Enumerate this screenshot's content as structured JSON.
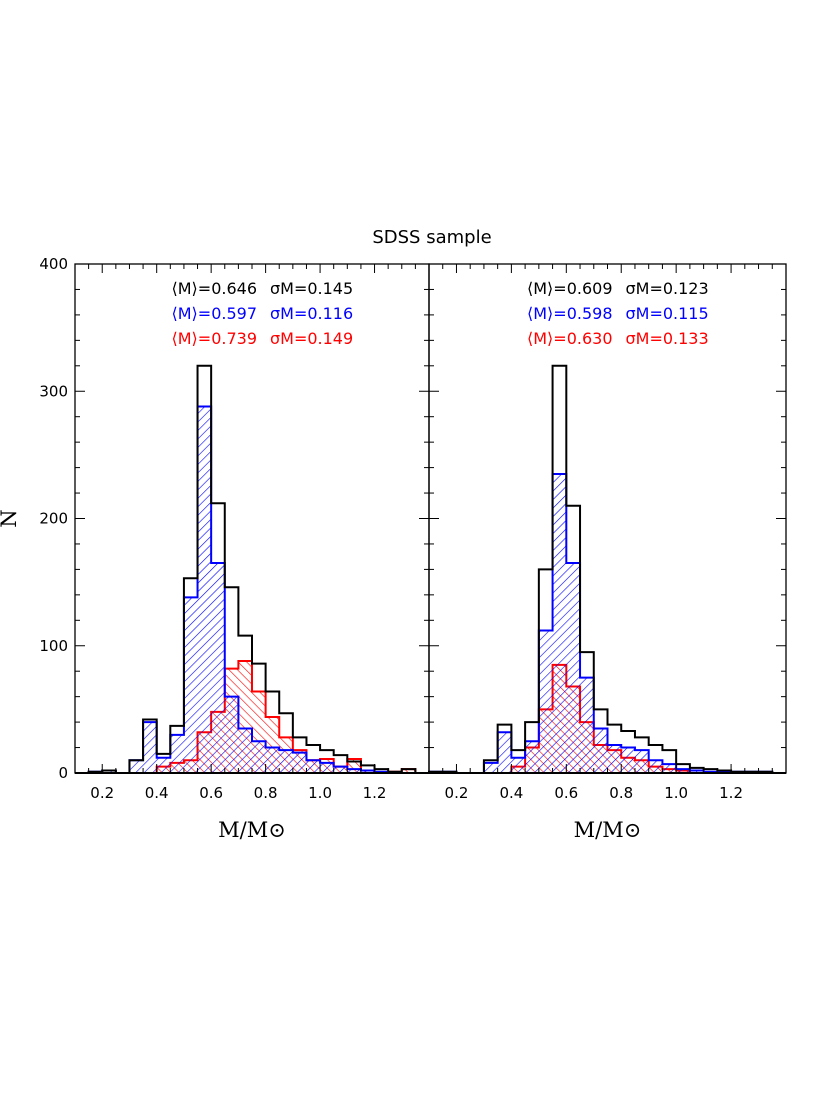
{
  "figure_title": "SDSS sample",
  "chart_data": [
    {
      "type": "histogram",
      "title": "",
      "xlabel": "M/M⊙",
      "ylabel": "N",
      "xlim": [
        0.1,
        1.4
      ],
      "ylim": [
        0,
        400
      ],
      "bin_edges": [
        0.1,
        0.15,
        0.2,
        0.25,
        0.3,
        0.35,
        0.4,
        0.45,
        0.5,
        0.55,
        0.6,
        0.65,
        0.7,
        0.75,
        0.8,
        0.85,
        0.9,
        0.95,
        1.0,
        1.05,
        1.1,
        1.15,
        1.2,
        1.25,
        1.3,
        1.35,
        1.4
      ],
      "series": [
        {
          "name": "",
          "color": "#000000",
          "fill": "none",
          "values": [
            0,
            1,
            2,
            0,
            10,
            42,
            15,
            37,
            153,
            320,
            212,
            146,
            108,
            86,
            64,
            47,
            28,
            22,
            18,
            14,
            9,
            6,
            3,
            1,
            3,
            0
          ],
          "stats": {
            "mean_label": "⟨M⟩=0.646",
            "sigma_label": "σM=0.145"
          }
        },
        {
          "name": "",
          "color": "#0000ff",
          "fill": "hatch-blue",
          "values": [
            0,
            1,
            2,
            0,
            10,
            40,
            12,
            30,
            138,
            288,
            165,
            60,
            35,
            25,
            20,
            18,
            16,
            10,
            8,
            5,
            3,
            2,
            1,
            0,
            0,
            0
          ],
          "stats": {
            "mean_label": "⟨M⟩=0.597",
            "sigma_label": "σM=0.116"
          }
        },
        {
          "name": "",
          "color": "#ff0000",
          "fill": "hatch-red",
          "values": [
            0,
            0,
            0,
            0,
            0,
            0,
            5,
            8,
            10,
            32,
            48,
            82,
            88,
            64,
            44,
            28,
            18,
            10,
            11,
            5,
            11,
            2,
            0,
            1,
            3,
            0
          ],
          "stats": {
            "mean_label": "⟨M⟩=0.739",
            "sigma_label": "σM=0.149"
          }
        }
      ],
      "xticks": [
        0.2,
        0.4,
        0.6,
        0.8,
        1.0,
        1.2
      ],
      "xtick_labels": [
        "0.2",
        "0.4",
        "0.6",
        "0.8",
        "1.0",
        "1.2"
      ],
      "yticks": [
        0,
        100,
        200,
        300,
        400
      ],
      "ytick_labels": [
        "0",
        "100",
        "200",
        "300",
        "400"
      ]
    },
    {
      "type": "histogram",
      "title": "",
      "xlabel": "M/M⊙",
      "ylabel": "",
      "xlim": [
        0.1,
        1.4
      ],
      "ylim": [
        0,
        400
      ],
      "bin_edges": [
        0.1,
        0.15,
        0.2,
        0.25,
        0.3,
        0.35,
        0.4,
        0.45,
        0.5,
        0.55,
        0.6,
        0.65,
        0.7,
        0.75,
        0.8,
        0.85,
        0.9,
        0.95,
        1.0,
        1.05,
        1.1,
        1.15,
        1.2,
        1.25,
        1.3,
        1.35,
        1.4
      ],
      "series": [
        {
          "name": "",
          "color": "#000000",
          "fill": "none",
          "values": [
            1,
            1,
            0,
            0,
            10,
            38,
            18,
            40,
            160,
            320,
            210,
            95,
            50,
            38,
            33,
            28,
            22,
            18,
            7,
            4,
            3,
            2,
            1,
            1,
            1,
            0
          ],
          "stats": {
            "mean_label": "⟨M⟩=0.609",
            "sigma_label": "σM=0.123"
          }
        },
        {
          "name": "",
          "color": "#0000ff",
          "fill": "hatch-blue",
          "values": [
            1,
            1,
            0,
            0,
            8,
            32,
            12,
            25,
            112,
            235,
            165,
            75,
            35,
            22,
            20,
            18,
            10,
            7,
            3,
            2,
            1,
            1,
            1,
            1,
            1,
            0
          ],
          "stats": {
            "mean_label": "⟨M⟩=0.598",
            "sigma_label": "σM=0.115"
          }
        },
        {
          "name": "",
          "color": "#ff0000",
          "fill": "hatch-red",
          "values": [
            0,
            0,
            0,
            0,
            0,
            0,
            5,
            20,
            50,
            85,
            68,
            40,
            22,
            18,
            12,
            10,
            5,
            3,
            2,
            0,
            0,
            0,
            0,
            0,
            0,
            0
          ],
          "stats": {
            "mean_label": "⟨M⟩=0.630",
            "sigma_label": "σM=0.133"
          }
        }
      ],
      "xticks": [
        0.2,
        0.4,
        0.6,
        0.8,
        1.0,
        1.2
      ],
      "xtick_labels": [
        "0.2",
        "0.4",
        "0.6",
        "0.8",
        "1.0",
        "1.2"
      ],
      "yticks": [
        0,
        100,
        200,
        300,
        400
      ],
      "ytick_labels": []
    }
  ]
}
